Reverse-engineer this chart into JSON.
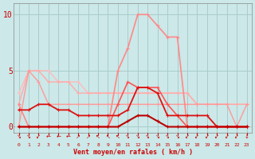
{
  "xlabel": "Vent moyen/en rafales ( km/h )",
  "background_color": "#cce8e8",
  "grid_color": "#aacccc",
  "x": [
    0,
    1,
    2,
    3,
    4,
    5,
    6,
    7,
    8,
    9,
    10,
    11,
    12,
    13,
    14,
    15,
    16,
    17,
    18,
    19,
    20,
    21,
    22,
    23
  ],
  "lines": [
    {
      "y": [
        3,
        5,
        5,
        5,
        4,
        4,
        4,
        3,
        3,
        3,
        3,
        3,
        3,
        3,
        3,
        3,
        3,
        3,
        2,
        2,
        2,
        2,
        2,
        2
      ],
      "color": "#ffbbbb",
      "lw": 1.0
    },
    {
      "y": [
        2,
        5,
        5,
        4,
        4,
        4,
        3,
        3,
        3,
        3,
        3,
        3,
        3,
        3,
        3,
        3,
        3,
        3,
        2,
        2,
        2,
        2,
        2,
        2
      ],
      "color": "#ffaaaa",
      "lw": 1.0
    },
    {
      "y": [
        0,
        5,
        4,
        2,
        2,
        2,
        2,
        2,
        2,
        2,
        2,
        2,
        2,
        2,
        2,
        2,
        2,
        2,
        2,
        2,
        2,
        2,
        0,
        2
      ],
      "color": "#ff9999",
      "lw": 1.0
    },
    {
      "y": [
        2,
        0,
        0,
        0,
        0,
        0,
        0,
        0,
        0,
        0,
        5,
        7,
        10,
        10,
        9,
        8,
        8,
        0,
        0,
        0,
        0,
        0,
        0,
        0
      ],
      "color": "#ff8888",
      "lw": 1.2
    },
    {
      "y": [
        0,
        0,
        0,
        0,
        0,
        0,
        0,
        0,
        0,
        0,
        2,
        4,
        3.5,
        3.5,
        3.5,
        2,
        1,
        0,
        0,
        0,
        0,
        0,
        0,
        0
      ],
      "color": "#ff5555",
      "lw": 1.2
    },
    {
      "y": [
        1.5,
        1.5,
        2,
        2,
        1.5,
        1.5,
        1,
        1,
        1,
        1,
        1,
        1.5,
        3.5,
        3.5,
        3,
        1,
        1,
        1,
        1,
        1,
        0,
        0,
        0,
        0
      ],
      "color": "#dd1111",
      "lw": 1.3
    },
    {
      "y": [
        0,
        0,
        0,
        0,
        0,
        0,
        0,
        0,
        0,
        0,
        0,
        0.5,
        1,
        1,
        0.5,
        0,
        0,
        0,
        0,
        0,
        0,
        0,
        0,
        0
      ],
      "color": "#bb0000",
      "lw": 1.5
    }
  ],
  "yticks": [
    0,
    5,
    10
  ],
  "xtick_labels": [
    "0",
    "1",
    "2",
    "3",
    "4",
    "5",
    "6",
    "7",
    "8",
    "9",
    "10",
    "11",
    "12",
    "13",
    "14",
    "15",
    "16",
    "17",
    "18",
    "19",
    "20",
    "21",
    "22",
    "23"
  ],
  "ylim": [
    -0.5,
    11.0
  ],
  "xlim": [
    -0.5,
    23.5
  ],
  "arrow_chars": [
    "↘",
    "↘",
    "↙",
    "←",
    "←",
    "←",
    "↗",
    "↗",
    "↖",
    "↖",
    "↖",
    "↘",
    "↘",
    "↘",
    "↘",
    "↘",
    "↘",
    "↙",
    "↙",
    "↙",
    "↙",
    "↙",
    "↙",
    "↓"
  ]
}
